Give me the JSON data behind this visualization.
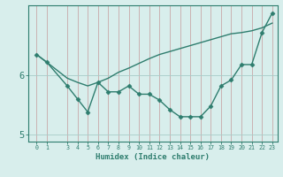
{
  "xlabel": "Humidex (Indice chaleur)",
  "background_color": "#d8eeec",
  "line_color": "#2e7d6e",
  "hgrid_color": "#a8ccc8",
  "vgrid_color": "#c8a8a8",
  "x_hours": [
    0,
    1,
    3,
    4,
    5,
    6,
    7,
    8,
    9,
    10,
    11,
    12,
    13,
    14,
    15,
    16,
    17,
    18,
    19,
    20,
    21,
    22,
    23
  ],
  "y_actual": [
    6.35,
    6.22,
    5.82,
    5.6,
    5.38,
    5.88,
    5.72,
    5.72,
    5.82,
    5.68,
    5.68,
    5.58,
    5.42,
    5.3,
    5.3,
    5.3,
    5.48,
    5.82,
    5.92,
    6.18,
    6.18,
    6.72,
    7.05
  ],
  "y_trend": [
    6.35,
    6.22,
    5.95,
    5.88,
    5.82,
    5.88,
    5.95,
    6.05,
    6.12,
    6.2,
    6.28,
    6.35,
    6.4,
    6.45,
    6.5,
    6.55,
    6.6,
    6.65,
    6.7,
    6.72,
    6.75,
    6.8,
    6.88
  ],
  "ylim_min": 4.88,
  "ylim_max": 7.18,
  "yticks": [
    5,
    6
  ],
  "xticks": [
    0,
    1,
    3,
    4,
    5,
    6,
    7,
    8,
    9,
    10,
    11,
    12,
    13,
    14,
    15,
    16,
    17,
    18,
    19,
    20,
    21,
    22,
    23
  ],
  "marker": "D",
  "markersize": 2.5,
  "linewidth": 1.0
}
